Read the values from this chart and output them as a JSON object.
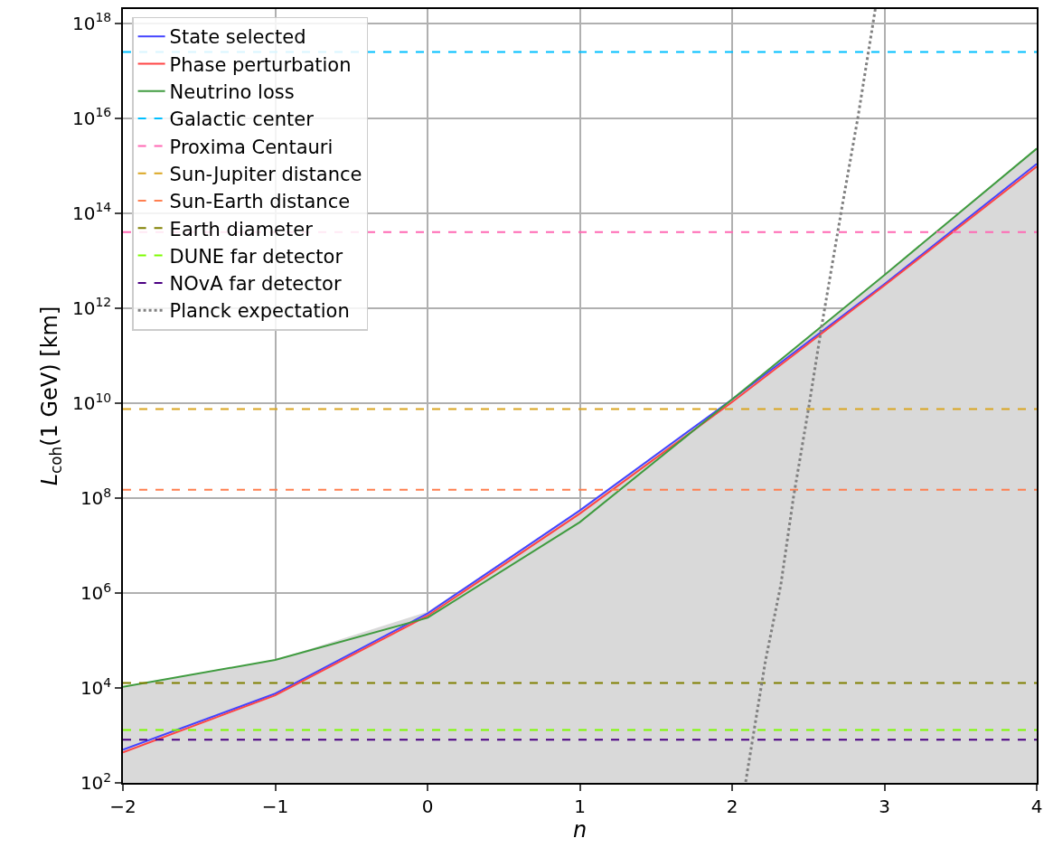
{
  "chart_data": {
    "type": "line",
    "xlabel": "n",
    "ylabel": "L$_{coh}$(1 GeV) [km]",
    "log": "y",
    "grid": true,
    "legend": "top left",
    "marker": "none",
    "line_style": "solid",
    "xlim": [
      -2,
      4
    ],
    "xticks": [
      {
        "value": -2,
        "label": "−2"
      },
      {
        "value": -1,
        "label": "−1"
      },
      0,
      1,
      2,
      3,
      4
    ],
    "ylim": [
      100,
      2e+18
    ],
    "yticks": [
      {
        "value": 100.0,
        "label": "10$^{2}$"
      },
      {
        "value": 10000.0,
        "label": "10$^{4}$"
      },
      {
        "value": 1000000.0,
        "label": "10$^{6}$"
      },
      {
        "value": 100000000.0,
        "label": "10$^{8}$"
      },
      {
        "value": 10000000000.0,
        "label": "10$^{10}$"
      },
      {
        "value": 1000000000000.0,
        "label": "10$^{12}$"
      },
      {
        "value": 100000000000000.0,
        "label": "10$^{14}$"
      },
      {
        "value": 1e+16,
        "label": "10$^{16}$"
      },
      {
        "value": 1e+18,
        "label": "10$^{18}$"
      }
    ],
    "x": [
      -2,
      -1,
      0,
      1,
      2,
      3,
      4
    ],
    "series": [
      {
        "type": "area",
        "color": "#d9d9d9",
        "values": [
          10500,
          39000,
          400000,
          55000000,
          12000000000,
          5000000000000,
          2300000000000000
        ]
      },
      {
        "name": "State selected",
        "color": "#4444ff",
        "values": [
          500,
          7600,
          370000,
          55000000,
          12000000000,
          3200000000000,
          1100000000000000
        ]
      },
      {
        "name": "Phase perturbation",
        "color": "#ff4444",
        "values": [
          440,
          7000,
          330000,
          47000000,
          10500000000,
          3000000000000,
          960000000000000
        ]
      },
      {
        "name": "Neutrino loss",
        "color": "#3f9b3f",
        "values": [
          10500,
          39000,
          300000,
          31000000,
          12000000000,
          5000000000000,
          2300000000000000
        ]
      },
      {
        "name": "Galactic center",
        "color": "#00bfff",
        "line_style": "dashed",
        "x": [
          -2,
          4
        ],
        "values": [
          250000000000000000,
          250000000000000000
        ]
      },
      {
        "name": "Proxima Centauri",
        "color": "#ff69b4",
        "line_style": "dashed",
        "x": [
          -2,
          4
        ],
        "values": [
          40000000000000,
          40000000000000
        ]
      },
      {
        "name": "Sun-Jupiter distance",
        "color": "#daa520",
        "line_style": "dashed",
        "x": [
          -2,
          4
        ],
        "values": [
          7500000000,
          7500000000
        ]
      },
      {
        "name": "Sun-Earth distance",
        "color": "#ff7f50",
        "line_style": "dashed",
        "x": [
          -2,
          4
        ],
        "values": [
          150000000,
          150000000
        ]
      },
      {
        "name": "Earth diameter",
        "color": "#808000",
        "line_style": "dashed",
        "x": [
          -2,
          4
        ],
        "values": [
          12700,
          12700
        ]
      },
      {
        "name": "DUNE far detector",
        "color": "#7cfc00",
        "line_style": "dashed",
        "x": [
          -2,
          4
        ],
        "values": [
          1300,
          1300
        ]
      },
      {
        "name": "NOvA far detector",
        "color": "#4b0082",
        "line_style": "dashed",
        "x": [
          -2,
          4
        ],
        "values": [
          810,
          810
        ]
      },
      {
        "name": "Planck expectation",
        "color": "#808080",
        "line_style": "dotted",
        "x": [
          2.089,
          2.154,
          2.22,
          2.32,
          2.404,
          2.504,
          2.588,
          2.724,
          2.825,
          2.94
        ],
        "values": [
          105,
          2000,
          39000,
          1500000,
          110000000,
          8500000000,
          420000000000,
          150000000000000.0,
          1e+16,
          2e+18
        ]
      }
    ]
  }
}
